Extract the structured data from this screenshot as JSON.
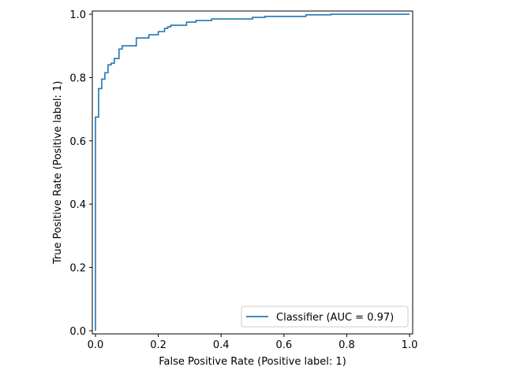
{
  "chart_data": {
    "type": "line",
    "xlabel": "False Positive Rate (Positive label: 1)",
    "ylabel": "True Positive Rate (Positive label: 1)",
    "xlim": [
      -0.01,
      1.01
    ],
    "ylim": [
      -0.01,
      1.01
    ],
    "x_ticks": [
      0.0,
      0.2,
      0.4,
      0.6,
      0.8,
      1.0
    ],
    "y_ticks": [
      0.0,
      0.2,
      0.4,
      0.6,
      0.8,
      1.0
    ],
    "x_tick_labels": [
      "0.0",
      "0.2",
      "0.4",
      "0.6",
      "0.8",
      "1.0"
    ],
    "y_tick_labels": [
      "0.0",
      "0.2",
      "0.4",
      "0.6",
      "0.8",
      "1.0"
    ],
    "grid": false,
    "legend_position": "bottom-right",
    "series": [
      {
        "name": "Classifier (AUC = 0.97)",
        "color": "#1f77b4",
        "step": true,
        "x": [
          0.0,
          0.0,
          0.01,
          0.01,
          0.02,
          0.02,
          0.03,
          0.03,
          0.04,
          0.04,
          0.05,
          0.05,
          0.06,
          0.06,
          0.075,
          0.075,
          0.085,
          0.085,
          0.13,
          0.13,
          0.17,
          0.17,
          0.2,
          0.2,
          0.22,
          0.22,
          0.23,
          0.23,
          0.24,
          0.24,
          0.29,
          0.29,
          0.32,
          0.32,
          0.37,
          0.37,
          0.5,
          0.5,
          0.54,
          0.54,
          0.67,
          0.67,
          0.75,
          0.75,
          1.0
        ],
        "y": [
          0.0,
          0.675,
          0.675,
          0.765,
          0.765,
          0.795,
          0.795,
          0.815,
          0.815,
          0.84,
          0.84,
          0.845,
          0.845,
          0.86,
          0.86,
          0.89,
          0.89,
          0.9,
          0.9,
          0.925,
          0.925,
          0.935,
          0.935,
          0.945,
          0.945,
          0.955,
          0.955,
          0.96,
          0.96,
          0.965,
          0.965,
          0.975,
          0.975,
          0.98,
          0.98,
          0.985,
          0.985,
          0.99,
          0.99,
          0.993,
          0.993,
          0.998,
          0.998,
          1.0,
          1.0
        ]
      }
    ]
  }
}
